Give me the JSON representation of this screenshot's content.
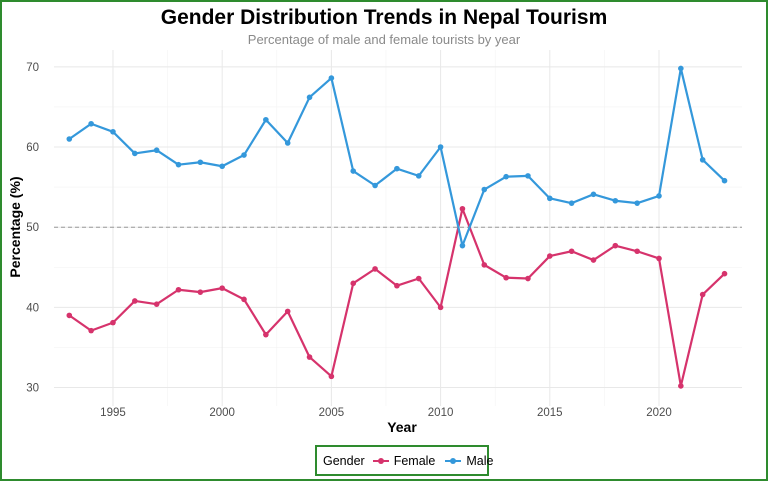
{
  "chart_data": {
    "type": "line",
    "title": "Gender Distribution Trends in Nepal Tourism",
    "subtitle": "Percentage of male and female tourists by year",
    "xlabel": "Year",
    "ylabel": "Percentage (%)",
    "xlim": [
      1992.3,
      2023.8
    ],
    "ylim": [
      27.7,
      72.1
    ],
    "xticks": [
      1995,
      2000,
      2005,
      2010,
      2015,
      2020
    ],
    "yticks": [
      30,
      40,
      50,
      60,
      70
    ],
    "reference_line": {
      "y": 50,
      "style": "dashed"
    },
    "grid": true,
    "legend_position": "bottom",
    "legend_title": "Gender",
    "x": [
      1993,
      1994,
      1995,
      1996,
      1997,
      1998,
      1999,
      2000,
      2001,
      2002,
      2003,
      2004,
      2005,
      2006,
      2007,
      2008,
      2009,
      2010,
      2011,
      2012,
      2013,
      2014,
      2015,
      2016,
      2017,
      2018,
      2019,
      2020,
      2021,
      2022,
      2023
    ],
    "series": [
      {
        "name": "Female",
        "color": "#d6336c",
        "values": [
          39.0,
          37.1,
          38.1,
          40.8,
          40.4,
          42.2,
          41.9,
          42.4,
          41.0,
          36.6,
          39.5,
          33.8,
          31.4,
          43.0,
          44.8,
          42.7,
          43.6,
          40.0,
          52.3,
          45.3,
          43.7,
          43.6,
          46.4,
          47.0,
          45.9,
          47.7,
          47.0,
          46.1,
          30.2,
          41.6,
          44.2
        ]
      },
      {
        "name": "Male",
        "color": "#3498db",
        "values": [
          61.0,
          62.9,
          61.9,
          59.2,
          59.6,
          57.8,
          58.1,
          57.6,
          59.0,
          63.4,
          60.5,
          66.2,
          68.6,
          57.0,
          55.2,
          57.3,
          56.4,
          60.0,
          47.7,
          54.7,
          56.3,
          56.4,
          53.6,
          53.0,
          54.1,
          53.3,
          53.0,
          53.9,
          69.8,
          58.4,
          55.8
        ]
      }
    ]
  }
}
